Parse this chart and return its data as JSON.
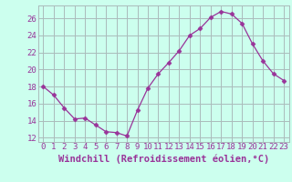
{
  "x": [
    0,
    1,
    2,
    3,
    4,
    5,
    6,
    7,
    8,
    9,
    10,
    11,
    12,
    13,
    14,
    15,
    16,
    17,
    18,
    19,
    20,
    21,
    22,
    23
  ],
  "y": [
    18.0,
    17.0,
    15.5,
    14.2,
    14.3,
    13.5,
    12.7,
    12.6,
    12.2,
    15.2,
    17.8,
    19.5,
    20.8,
    22.2,
    24.0,
    24.8,
    26.1,
    26.8,
    26.5,
    25.4,
    23.0,
    21.0,
    19.5,
    18.7
  ],
  "line_color": "#993399",
  "marker": "D",
  "markersize": 2.5,
  "linewidth": 0.9,
  "bg_color": "#ccffee",
  "grid_color": "#aabbbb",
  "axes_label_color": "#993399",
  "tick_color": "#993399",
  "xlabel": "Windchill (Refroidissement éolien,°C)",
  "ylim": [
    11.5,
    27.5
  ],
  "xlim": [
    -0.5,
    23.5
  ],
  "yticks": [
    12,
    14,
    16,
    18,
    20,
    22,
    24,
    26
  ],
  "xtick_labels": [
    "0",
    "1",
    "2",
    "3",
    "4",
    "5",
    "6",
    "7",
    "8",
    "9",
    "10",
    "11",
    "12",
    "13",
    "14",
    "15",
    "16",
    "17",
    "18",
    "19",
    "20",
    "21",
    "22",
    "23"
  ],
  "tick_fontsize": 6.5,
  "xlabel_fontsize": 7.5
}
